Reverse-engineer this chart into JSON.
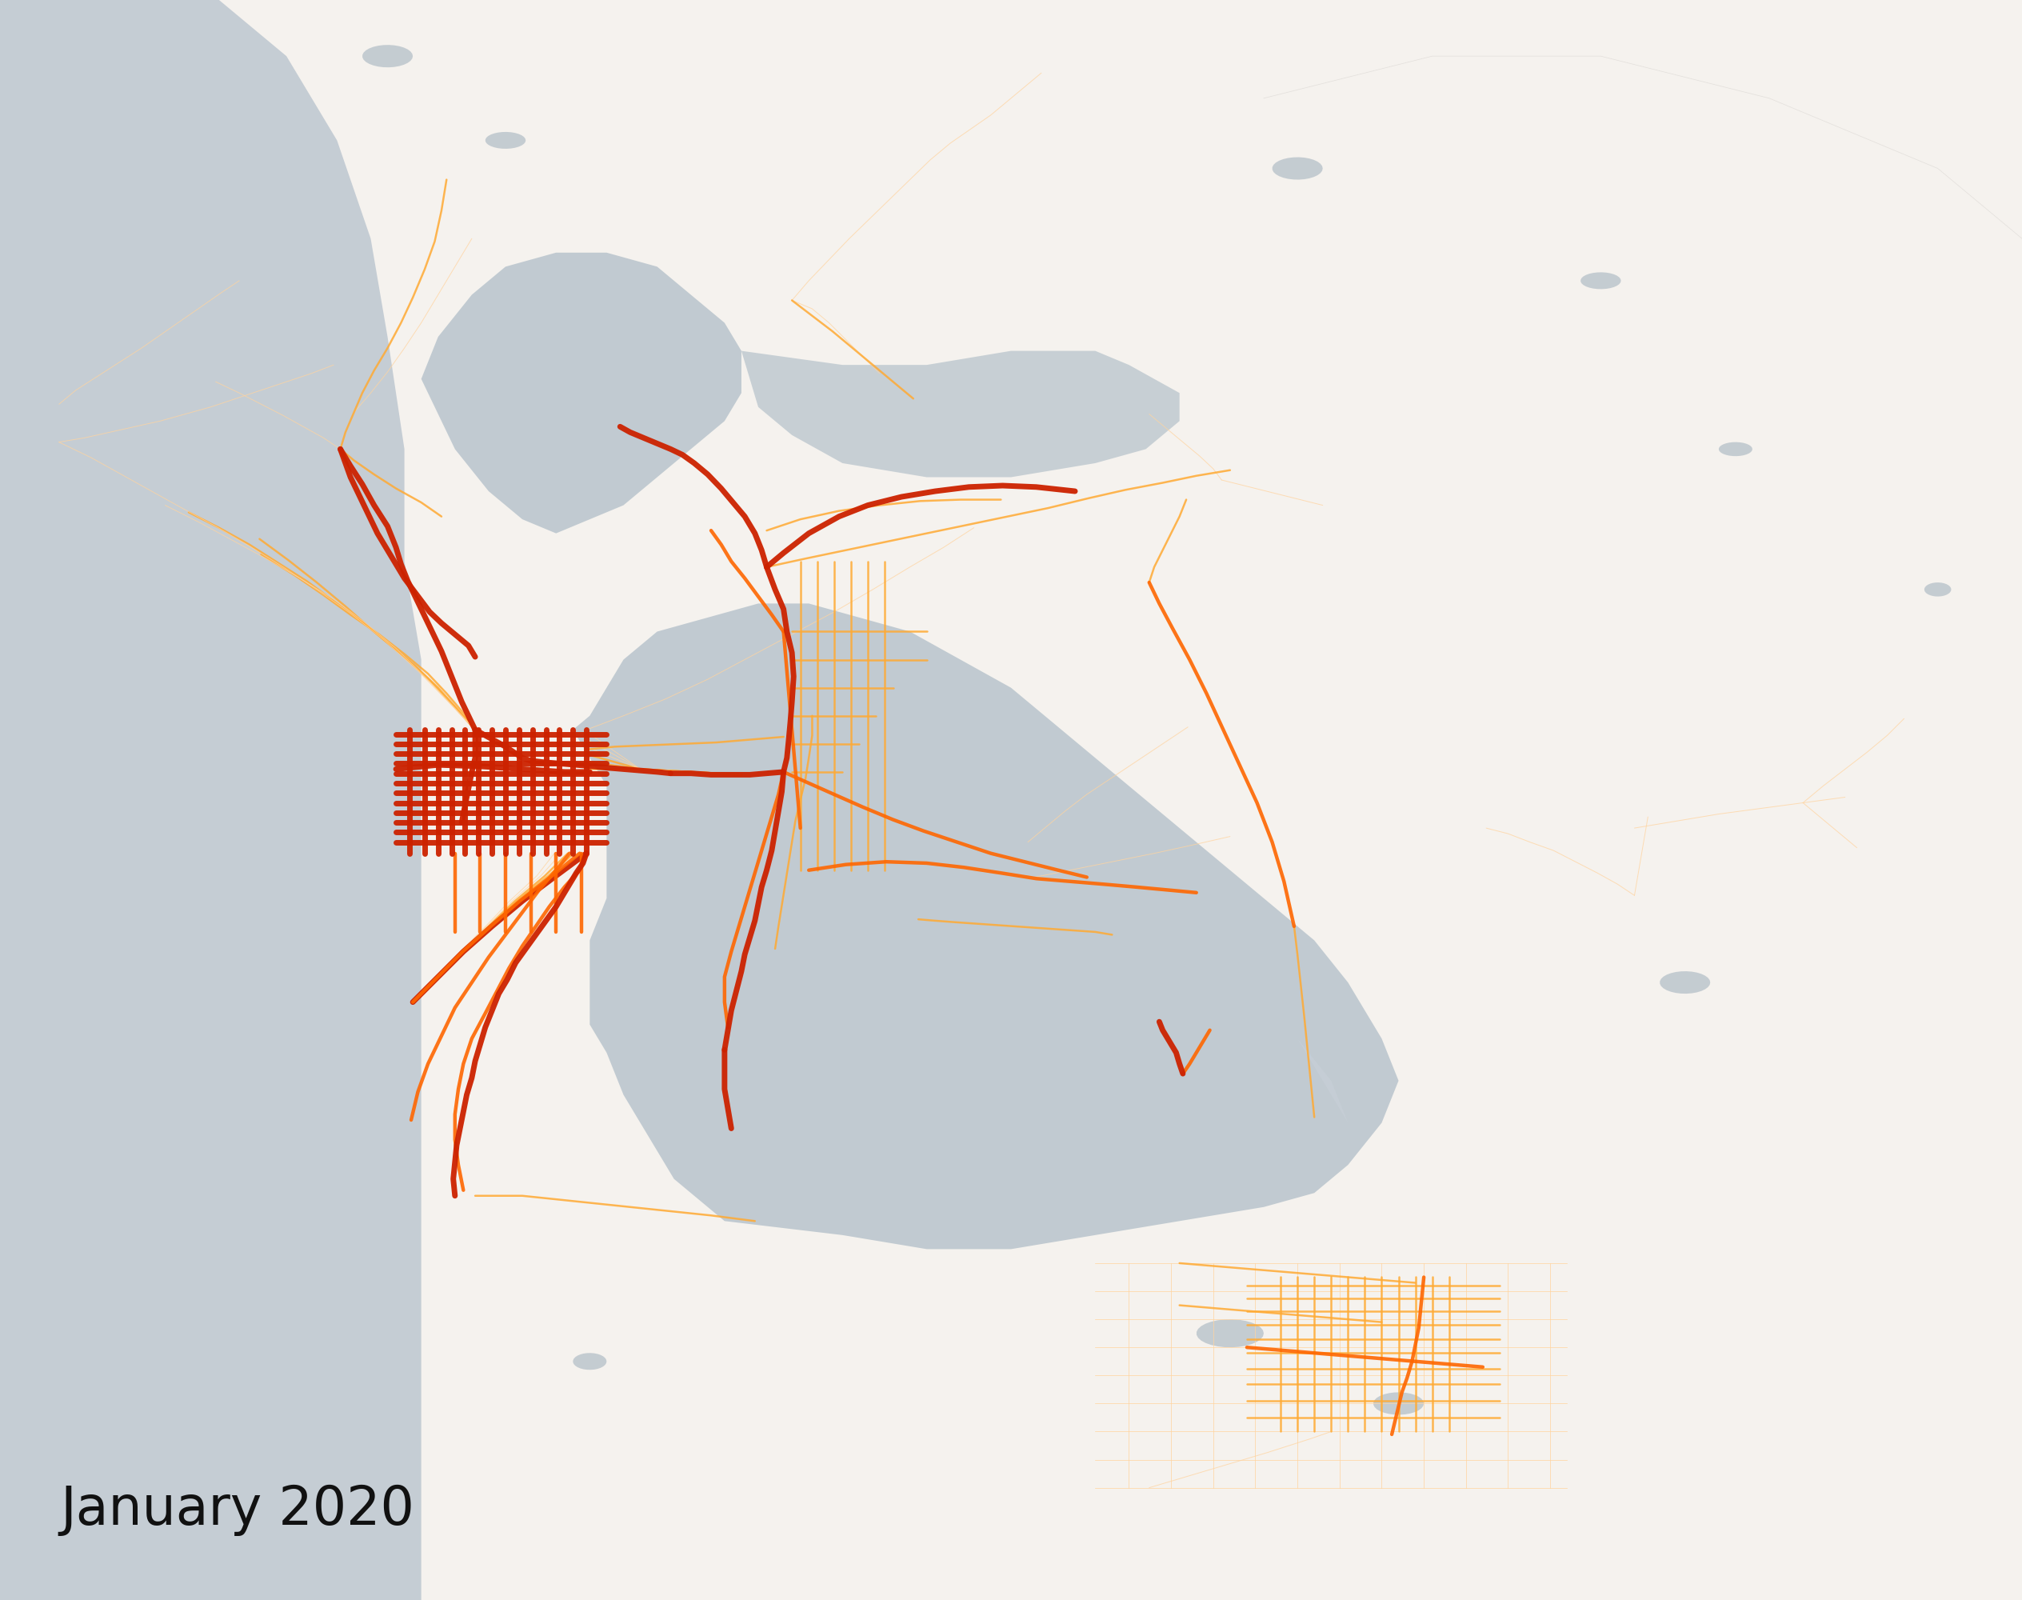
{
  "title": "January 2020",
  "title_fontsize": 48,
  "title_color": "#111111",
  "title_weight": "normal",
  "background_color": "#c8d4dc",
  "land_color": "#f5f2ee",
  "water_color": "#c5cdd4",
  "bay_color": "#b8c4cc",
  "fig_width": 25.28,
  "fig_height": 20.0,
  "xlim": [
    -122.75,
    -121.55
  ],
  "ylim": [
    37.18,
    38.32
  ],
  "route_colors": {
    "low": "#ffd4a0",
    "medium": "#ffaa33",
    "high": "#ff6600",
    "very_high": "#cc2200"
  },
  "route_widths": {
    "low": 0.7,
    "medium": 1.8,
    "high": 3.2,
    "very_high": 5.0
  },
  "route_alphas": {
    "low": 0.75,
    "medium": 0.85,
    "high": 0.9,
    "very_high": 0.95
  }
}
